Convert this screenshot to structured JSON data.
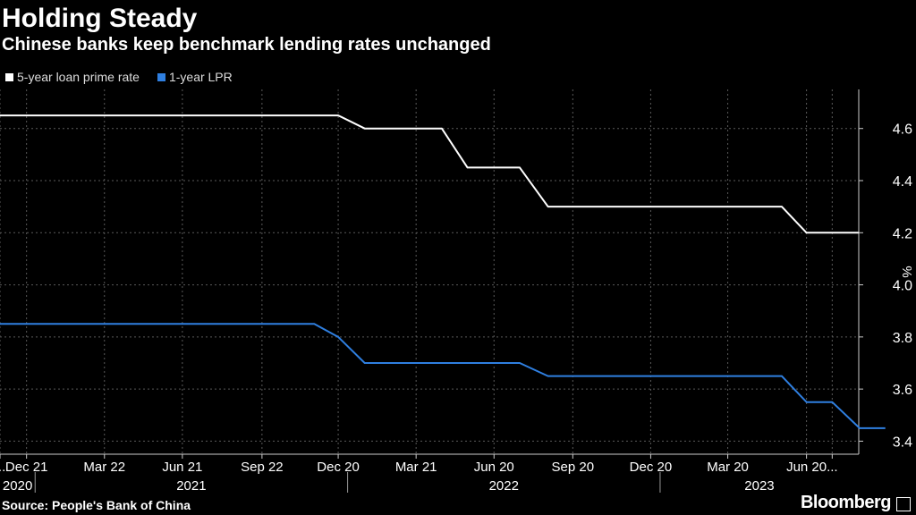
{
  "header": {
    "title": "Holding Steady",
    "subtitle": "Chinese banks keep benchmark lending rates unchanged"
  },
  "footer": {
    "source": "Source: People's Bank of China",
    "brand": "Bloomberg"
  },
  "colors": {
    "background": "#000000",
    "series_5y": "#ffffff",
    "series_1y": "#2f7fe0",
    "grid": "#5a5a5a"
  },
  "chart_data": {
    "type": "line",
    "title": "Holding Steady",
    "subtitle": "Chinese banks keep benchmark lending rates unchanged",
    "xlabel": "",
    "ylabel": "%",
    "ylim": [
      3.35,
      4.75
    ],
    "y_ticks": [
      3.4,
      3.6,
      3.8,
      4.0,
      4.2,
      4.4,
      4.6
    ],
    "y_tick_labels": [
      "3.4",
      "3.6",
      "3.8",
      "4.0",
      "4.2",
      "4.4",
      "4.6"
    ],
    "y_axis_side": "right",
    "grid": true,
    "legend_position": "top-left",
    "x_range": [
      "2020-11-20",
      "2023-08-20"
    ],
    "x_tick_labels": [
      {
        "label": "...",
        "date": "2020-11-20"
      },
      {
        "label": "Dec 21",
        "date": "2020-12-21"
      },
      {
        "label": "Mar 22",
        "date": "2021-03-22"
      },
      {
        "label": "Jun 21",
        "date": "2021-06-21"
      },
      {
        "label": "Sep 22",
        "date": "2021-09-22"
      },
      {
        "label": "Dec 20",
        "date": "2021-12-20"
      },
      {
        "label": "Mar 21",
        "date": "2022-03-21"
      },
      {
        "label": "Jun 20",
        "date": "2022-06-20"
      },
      {
        "label": "Sep 20",
        "date": "2022-09-20"
      },
      {
        "label": "Dec 20",
        "date": "2022-12-20"
      },
      {
        "label": "Mar 20",
        "date": "2023-03-20"
      },
      {
        "label": "Jun 20",
        "date": "2023-06-20"
      },
      {
        "label": "...",
        "date": "2023-07-20"
      }
    ],
    "year_labels": [
      {
        "label": "2020",
        "from": "2020-11-20",
        "to": "2020-12-31"
      },
      {
        "label": "2021",
        "from": "2020-12-31",
        "to": "2021-12-31"
      },
      {
        "label": "2022",
        "from": "2021-12-31",
        "to": "2022-12-31"
      },
      {
        "label": "2023",
        "from": "2022-12-31",
        "to": "2023-08-20"
      }
    ],
    "series": [
      {
        "name": "5-year loan prime rate",
        "color": "#ffffff",
        "points": [
          {
            "x": "2020-11-20",
            "y": 4.65
          },
          {
            "x": "2021-12-20",
            "y": 4.65
          },
          {
            "x": "2022-01-20",
            "y": 4.6
          },
          {
            "x": "2022-04-20",
            "y": 4.6
          },
          {
            "x": "2022-05-20",
            "y": 4.45
          },
          {
            "x": "2022-07-20",
            "y": 4.45
          },
          {
            "x": "2022-08-22",
            "y": 4.3
          },
          {
            "x": "2023-05-22",
            "y": 4.3
          },
          {
            "x": "2023-06-20",
            "y": 4.2
          },
          {
            "x": "2023-08-20",
            "y": 4.2
          }
        ]
      },
      {
        "name": "1-year LPR",
        "color": "#2f7fe0",
        "points": [
          {
            "x": "2020-11-20",
            "y": 3.85
          },
          {
            "x": "2021-11-22",
            "y": 3.85
          },
          {
            "x": "2021-12-20",
            "y": 3.8
          },
          {
            "x": "2022-01-20",
            "y": 3.7
          },
          {
            "x": "2022-07-20",
            "y": 3.7
          },
          {
            "x": "2022-08-22",
            "y": 3.65
          },
          {
            "x": "2023-05-22",
            "y": 3.65
          },
          {
            "x": "2023-06-20",
            "y": 3.55
          },
          {
            "x": "2023-07-20",
            "y": 3.55
          },
          {
            "x": "2023-08-21",
            "y": 3.45
          },
          {
            "x": "2023-09-20",
            "y": 3.45
          }
        ]
      }
    ]
  }
}
